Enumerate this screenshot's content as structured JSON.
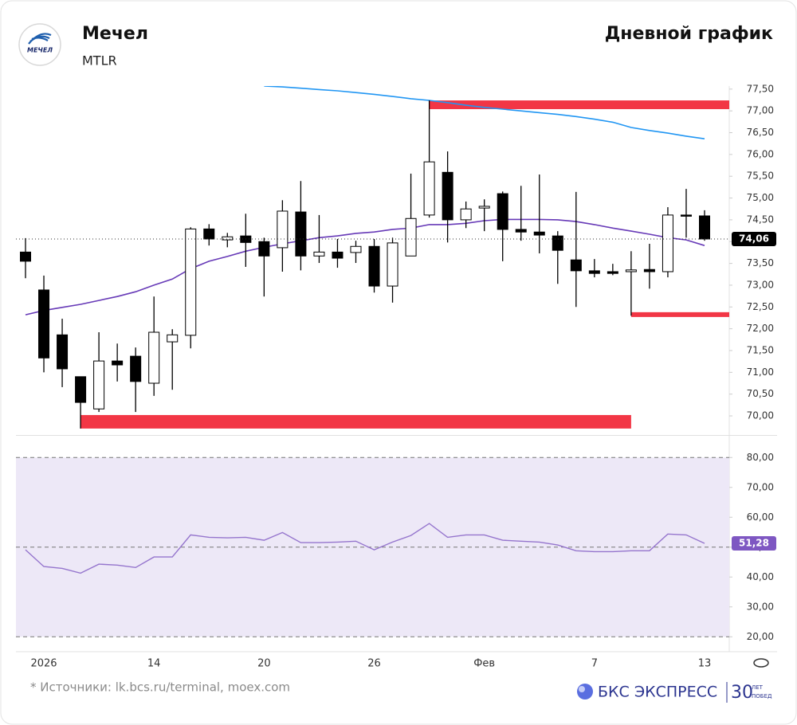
{
  "header": {
    "logo_text": "МЕЧЕЛ",
    "title": "Мечел",
    "ticker": "MTLR",
    "chart_label": "Дневной график"
  },
  "footer": {
    "source": "* Источники: lk.bcs.ru/terminal, moex.com",
    "brand": "БКС ЭКСПРЕСС",
    "anniversary_number": "30",
    "anniversary_word_1": "ЛЕТ",
    "anniversary_word_2": "ПОБЕД"
  },
  "chart_data": [
    {
      "type": "candlestick",
      "categories": [
        null,
        "2026",
        null,
        null,
        null,
        null,
        null,
        "14",
        null,
        null,
        null,
        null,
        null,
        "20",
        null,
        null,
        null,
        null,
        null,
        "26",
        null,
        null,
        null,
        null,
        null,
        "Фев",
        null,
        null,
        null,
        null,
        null,
        "7",
        null,
        null,
        null,
        null,
        null,
        "13"
      ],
      "open": [
        73.76,
        72.89,
        71.86,
        70.9,
        70.16,
        71.26,
        71.37,
        70.75,
        71.7,
        71.85,
        74.29,
        74.04,
        74.13,
        74.0,
        73.86,
        74.68,
        73.67,
        73.76,
        73.75,
        73.89,
        72.98,
        73.67,
        74.61,
        75.59,
        74.5,
        74.77,
        75.1,
        74.28,
        74.22,
        74.13,
        73.58,
        73.33,
        73.31,
        73.31,
        73.36,
        73.31,
        74.61,
        74.59
      ],
      "high": [
        74.08,
        73.22,
        72.23,
        70.9,
        71.92,
        71.66,
        71.57,
        72.74,
        71.99,
        74.33,
        74.4,
        74.2,
        74.64,
        74.09,
        74.95,
        75.39,
        74.61,
        74.06,
        74.02,
        74.06,
        74.09,
        75.56,
        77.24,
        76.07,
        74.92,
        74.97,
        75.15,
        75.28,
        75.54,
        74.24,
        75.14,
        73.6,
        73.49,
        73.78,
        73.95,
        74.79,
        75.21,
        74.72
      ],
      "low": [
        73.16,
        71.0,
        70.66,
        69.71,
        70.09,
        70.79,
        70.09,
        70.46,
        70.6,
        71.55,
        73.91,
        73.87,
        73.42,
        72.74,
        73.31,
        73.34,
        73.51,
        73.4,
        73.51,
        72.83,
        72.6,
        73.67,
        74.55,
        73.98,
        74.31,
        74.24,
        73.55,
        74.02,
        73.73,
        73.03,
        72.5,
        73.18,
        73.23,
        72.3,
        72.92,
        73.18,
        74.09,
        74.02
      ],
      "close": [
        73.55,
        71.33,
        71.08,
        70.31,
        71.26,
        71.17,
        70.79,
        71.92,
        71.86,
        74.29,
        74.06,
        74.11,
        73.98,
        73.67,
        74.7,
        73.67,
        73.76,
        73.62,
        73.89,
        72.98,
        73.97,
        74.53,
        75.83,
        74.5,
        74.75,
        74.81,
        74.28,
        74.22,
        74.15,
        73.8,
        73.33,
        73.27,
        73.27,
        73.35,
        73.31,
        74.61,
        74.59,
        74.06
      ],
      "up_color": "#ffffff",
      "down_color": "#000000",
      "series": [
        {
          "color": "#2196f3",
          "values": [
            null,
            null,
            null,
            null,
            null,
            null,
            null,
            null,
            null,
            null,
            null,
            null,
            null,
            77.57,
            77.55,
            77.52,
            77.49,
            77.46,
            77.42,
            77.38,
            77.33,
            77.28,
            77.24,
            77.19,
            77.13,
            77.08,
            77.04,
            77.0,
            76.96,
            76.92,
            76.87,
            76.81,
            76.74,
            76.62,
            76.55,
            76.49,
            76.42,
            76.36
          ]
        },
        {
          "color": "#673ab7",
          "values": [
            72.32,
            72.42,
            72.49,
            72.56,
            72.65,
            72.74,
            72.85,
            73.0,
            73.14,
            73.38,
            73.55,
            73.66,
            73.78,
            73.87,
            73.95,
            74.02,
            74.09,
            74.13,
            74.19,
            74.22,
            74.28,
            74.31,
            74.39,
            74.39,
            74.42,
            74.48,
            74.51,
            74.51,
            74.51,
            74.5,
            74.46,
            74.39,
            74.31,
            74.24,
            74.17,
            74.09,
            74.04,
            73.91
          ]
        }
      ],
      "zones": [
        {
          "start": 22,
          "low": 77.04,
          "high": 77.24,
          "extend_right": true,
          "color": "#f23645"
        },
        {
          "start": 33,
          "low": 72.27,
          "high": 72.38,
          "extend_right": true,
          "color": "#f23645"
        },
        {
          "start": 3,
          "end": 33,
          "low": 69.71,
          "high": 70.02,
          "extend_right": false,
          "color": "#f23645"
        }
      ],
      "last_value": {
        "value": 74.06,
        "label": "74,06"
      },
      "ylim": [
        69.58,
        77.57
      ],
      "yticks": [
        {
          "value": 70,
          "label": "70,00"
        },
        {
          "value": 70.5,
          "label": "70,50"
        },
        {
          "value": 71,
          "label": "71,00"
        },
        {
          "value": 71.5,
          "label": "71,50"
        },
        {
          "value": 72,
          "label": "72,00"
        },
        {
          "value": 72.5,
          "label": "72,50"
        },
        {
          "value": 73,
          "label": "73,00"
        },
        {
          "value": 73.5,
          "label": "73,50"
        },
        {
          "value": 74,
          "label": "74,00"
        },
        {
          "value": 74.5,
          "label": "74,50"
        },
        {
          "value": 75,
          "label": "75,00"
        },
        {
          "value": 75.5,
          "label": "75,50"
        },
        {
          "value": 76,
          "label": "76,00"
        },
        {
          "value": 76.5,
          "label": "76,50"
        },
        {
          "value": 77,
          "label": "77,00"
        },
        {
          "value": 77.5,
          "label": "77,50"
        }
      ]
    },
    {
      "type": "line",
      "color": "#9575cd",
      "values": [
        49.1,
        43.5,
        42.9,
        41.3,
        44.3,
        44.0,
        43.2,
        46.7,
        46.7,
        54.1,
        53.3,
        53.1,
        53.3,
        52.3,
        54.9,
        51.5,
        51.5,
        51.7,
        52.0,
        49.1,
        51.7,
        53.9,
        57.9,
        53.3,
        54.1,
        54.1,
        52.3,
        52.0,
        51.7,
        50.7,
        48.8,
        48.5,
        48.5,
        48.8,
        48.8,
        54.4,
        54.1,
        51.28
      ],
      "band": [
        20,
        80
      ],
      "band_color": "#ede8f7",
      "ref_lines": [
        50
      ],
      "last_value": {
        "value": 51.28,
        "label": "51,28"
      },
      "ylim": [
        15,
        87
      ],
      "yticks": [
        {
          "value": 20,
          "label": "20,00"
        },
        {
          "value": 30,
          "label": "30,00"
        },
        {
          "value": 40,
          "label": "40,00"
        },
        {
          "value": 50,
          "label": "50,00"
        },
        {
          "value": 60,
          "label": "60,00"
        },
        {
          "value": 70,
          "label": "70,00"
        },
        {
          "value": 80,
          "label": "80,00"
        }
      ]
    }
  ]
}
